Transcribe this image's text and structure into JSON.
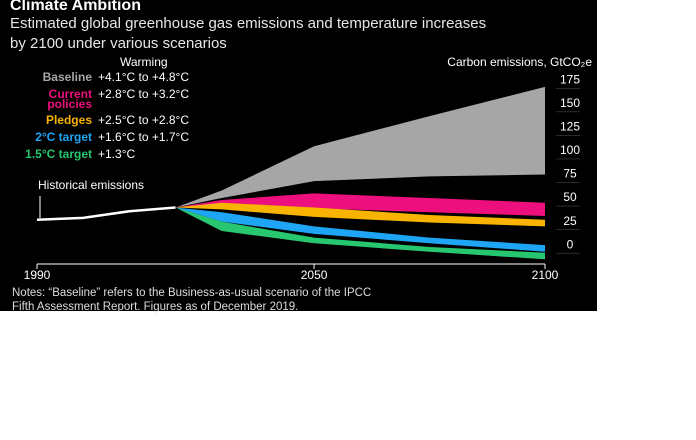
{
  "chart_data": {
    "type": "area_range",
    "title": "Climate Ambition",
    "subtitle": [
      "Estimated global greenhouse gas emissions and temperature increases",
      "by 2100 under various scenarios"
    ],
    "legend_title": "Warming",
    "y_axis_label": "Carbon emissions, GtCO₂e",
    "annotation": "Historical emissions",
    "notes": [
      "Notes: “Baseline” refers to the Business-as-usual scenario of the IPCC",
      "Fifth Assessment Report. Figures as of December 2019."
    ],
    "xlim": [
      1990,
      2100
    ],
    "xticks": [
      1990,
      2050,
      2100
    ],
    "ylim": [
      -20,
      180
    ],
    "yticks": [
      0,
      25,
      50,
      75,
      100,
      125,
      150,
      175
    ],
    "historical": {
      "color": "#ffffff",
      "x": [
        1990,
        2000,
        2010,
        2020
      ],
      "values": [
        27,
        29,
        36,
        40
      ]
    },
    "x": [
      2020,
      2030,
      2050,
      2075,
      2100
    ],
    "series": [
      {
        "name": [
          "Baseline"
        ],
        "warming": "+4.1°C to +4.8°C",
        "color": "#a6a6a6",
        "text_color": "#a6a6a6",
        "low": [
          40,
          50,
          68,
          73,
          75
        ],
        "high": [
          40,
          58,
          105,
          137,
          168
        ]
      },
      {
        "name": [
          "Current",
          "policies"
        ],
        "warming": "+2.8°C to +3.2°C",
        "color": "#ee0f7e",
        "text_color": "#ee0f7e",
        "low": [
          40,
          42,
          39,
          35,
          31
        ],
        "high": [
          40,
          48,
          55,
          50,
          45
        ]
      },
      {
        "name": [
          "Pledges"
        ],
        "warming": "+2.5°C to +2.8°C",
        "color": "#f8b400",
        "text_color": "#f8b400",
        "low": [
          40,
          38,
          30,
          24,
          20
        ],
        "high": [
          40,
          45,
          40,
          32,
          27
        ]
      },
      {
        "name": [
          "2°C target"
        ],
        "warming": "+1.6°C to +1.7°C",
        "color": "#1ea5f5",
        "text_color": "#1ea5f5",
        "low": [
          40,
          25,
          12,
          2,
          -7
        ],
        "high": [
          40,
          35,
          20,
          8,
          0
        ]
      },
      {
        "name": [
          "1.5°C target"
        ],
        "warming": "+1.3°C",
        "color": "#27c76f",
        "text_color": "#27c76f",
        "low": [
          40,
          15,
          2,
          -7,
          -15
        ],
        "high": [
          40,
          25,
          8,
          -2,
          -8
        ]
      }
    ]
  }
}
